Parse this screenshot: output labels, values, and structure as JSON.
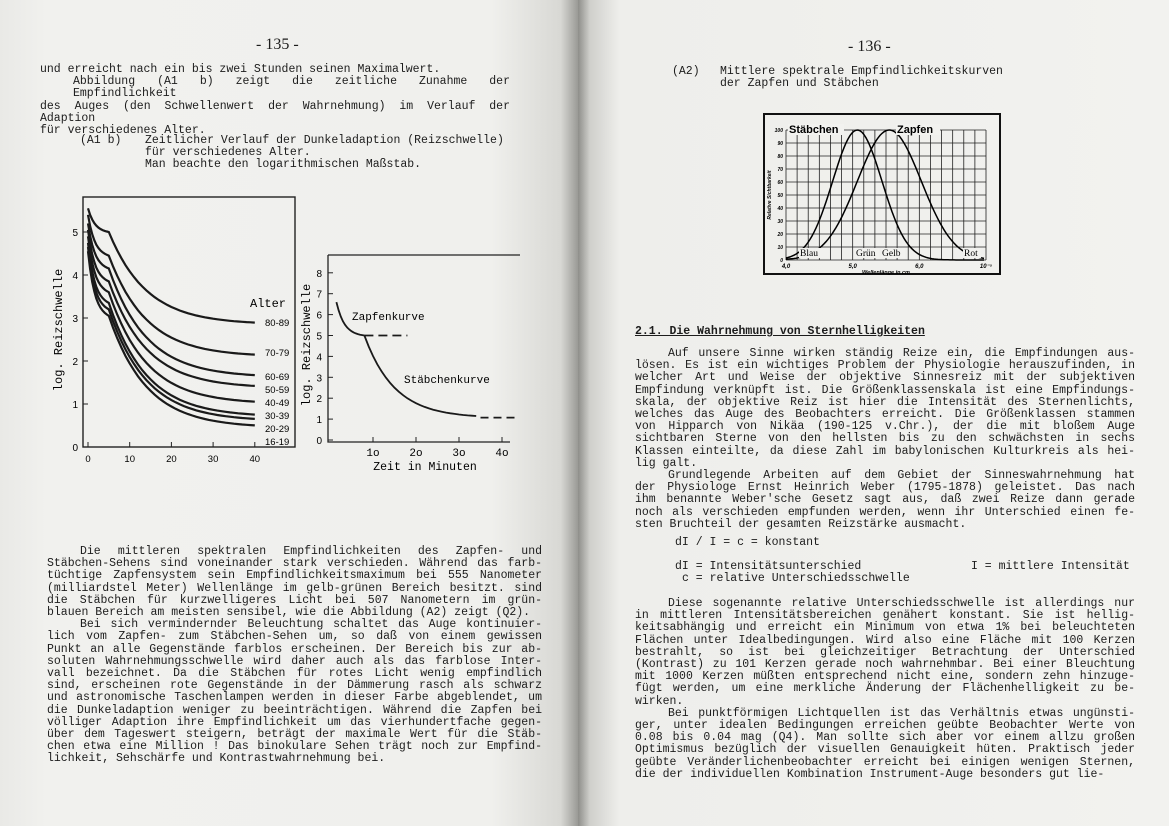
{
  "left_page": {
    "page_number": "- 135 -",
    "intro": [
      {
        "indent": false,
        "lines": [
          "und erreicht nach ein bis zwei Stunden seinen Maximalwert."
        ]
      },
      {
        "indent": true,
        "lines": [
          "Abbildung (A1 b) zeigt die zeitliche Zunahme der  Empfindlichkeit",
          "des  Auges (den Schwellenwert der Wahrnehmung) im Verlauf der Adaption",
          "für verschiedenes Alter."
        ]
      }
    ],
    "figure_caption": {
      "label": "(A1 b)",
      "lines": [
        "Zeitlicher Verlauf der Dunkeladaption (Reizschwelle)",
        "für verschiedenes Alter.",
        "Man beachte den logarithmischen Maßstab."
      ]
    },
    "figure_age": {
      "ylabel": "log. Reizschwelle",
      "y_ticks": [
        "0",
        "1",
        "2",
        "3",
        "4",
        "5"
      ],
      "x_ticks": [
        "0",
        "10",
        "20",
        "30",
        "40"
      ],
      "legend_title": "Alter",
      "series": [
        "80-89",
        "70-79",
        "60-69",
        "50-59",
        "40-49",
        "30-39",
        "20-29",
        "16-19"
      ]
    },
    "figure_curves": {
      "ylabel": "log. Reizschwelle",
      "xlabel": "Zeit in Minuten",
      "y_ticks": [
        "0",
        "1",
        "2",
        "3",
        "4",
        "5",
        "6",
        "7",
        "8"
      ],
      "x_ticks": [
        "1o",
        "2o",
        "3o",
        "4o"
      ],
      "cone_label": "Zapfenkurve",
      "rod_label": "Stäbchenkurve"
    },
    "body": [
      {
        "indent": true,
        "lines": [
          "Die mittleren spektralen Empfindlichkeiten des Zapfen-  und",
          "Stäbchen-Sehens sind voneinander stark verschieden.  Während das farb-",
          "tüchtige Zapfensystem sein Empfindlichkeitsmaximum bei  555  Nanometer",
          "(milliardstel Meter) Wellenlänge im gelb-grünen Bereich besitzt.  sind",
          "die Stäbchen für kurzwelligeres Licht  bei  507  Nanometern  im  grün-",
          "blauen Bereich am meisten sensibel, wie die Abbildung (A2) zeigt (Q2)."
        ]
      },
      {
        "indent": true,
        "lines": [
          "Bei  sich vermindernder Beleuchtung schaltet das Auge kontinuier-",
          "lich vom Zapfen- zum Stäbchen-Sehen um,  so  daß  von  einem  gewissen",
          "Punkt an alle Gegenstände farblos erscheinen.  Der Bereich bis zur ab-",
          "soluten Wahrnehmungsschwelle wird daher auch als das  farblose  Inter-",
          "vall  bezeichnet.  Da  die  Stäbchen für rotes Licht wenig empfindlich",
          "sind,  erscheinen rote Gegenstände in der Dämmerung rasch als  schwarz",
          "und astronomische Taschenlampen werden in dieser Farbe abgeblendet, um",
          "die Dunkeladaption weniger zu beeinträchtigen.  Während die Zapfen bei",
          "völliger Adaption ihre Empfindlichkeit um das vierhundertfache  gegen-",
          "über  dem Tageswert steigern,  beträgt der maximale Wert für die Stäb-",
          "chen etwa eine Million !  Das binokulare Sehen trägt noch zur Empfind-",
          "lichkeit, Sehschärfe und Kontrastwahrnehmung bei."
        ]
      }
    ]
  },
  "right_page": {
    "page_number": "- 136 -",
    "figure_caption": {
      "label": "(A2)",
      "lines": [
        "Mittlere spektrale Empfindlichkeitskurven",
        "der Zapfen und Stäbchen"
      ]
    },
    "figure_spectral": {
      "ylabel": "Relative Sichtbarkeit",
      "xlabel": "Wellenlänge in cm",
      "y_ticks": [
        "0",
        "10",
        "20",
        "30",
        "40",
        "50",
        "60",
        "70",
        "80",
        "90",
        "100"
      ],
      "x_ticks": [
        "4,0",
        "5,0",
        "6,0",
        "10⁻⁵"
      ],
      "rod_label": "Stäbchen",
      "cone_label": "Zapfen",
      "color_labels": [
        "Blau",
        "Grün",
        "Gelb",
        "Rot"
      ]
    },
    "section_heading": "2.1. Die Wahrnehmung von Sternhelligkeiten",
    "body1": [
      {
        "indent": true,
        "lines": [
          "Auf unsere Sinne wirken ständig Reize ein,  die Empfindungen aus-",
          "lösen. Es ist ein wichtiges Problem der Physiologie herauszufinden, in",
          "welcher Art und Weise der objektive  Sinnesreiz  mit  der  subjektiven",
          "Empfindung verknüpft ist. Die Größenklassenskala ist eine Empfindungs-",
          "skala,  der  objektive Reiz ist hier die Intensität des Sternenlichts,",
          "welches das Auge des Beobachters erreicht.  Die Größenklassen  stammen",
          "von  Hipparch  von  Nikäa  (190-125  v.Chr.),  der die mit bloßem Auge",
          "sichtbaren Sterne von den hellsten bis zu  den  schwächsten  in  sechs",
          "Klassen einteilte, da diese Zahl im babylonischen Kulturkreis als hei-",
          "lig galt."
        ]
      },
      {
        "indent": true,
        "lines": [
          "Grundlegende  Arbeiten  auf  dem Gebiet der Sinneswahrnehmung hat",
          "der Physiologe Ernst Heinrich Weber (1795-1878)  geleistet.  Das  nach",
          "ihm  benannte  Weber'sche Gesetz sagt aus,  daß zwei Reize dann gerade",
          "noch als verschieden empfunden werden,  wenn ihr Unterschied einen fe-",
          "sten Bruchteil der gesamten Reizstärke ausmacht."
        ]
      }
    ],
    "formula": "dI / I = c = konstant",
    "definitions": {
      "dI": "dI = Intensitätsunterschied",
      "I": "I = mittlere Intensität",
      "c": "c = relative Unterschiedsschwelle"
    },
    "body2": [
      {
        "indent": true,
        "lines": [
          "Diese sogenannte relative Unterschiedsschwelle ist allerdings nur",
          "in  mittleren Intensitätsbereichen genähert konstant.  Sie ist hellig-",
          "keitsabhängig und erreicht ein Minimum von etwa  1%  bei  beleuchteten",
          "Flächen  unter Idealbedingungen.  Wird also eine Fläche mit 100 Kerzen",
          "bestrahlt,  so  ist  bei  gleichzeitiger  Betrachtung  der  Unterschied",
          "(Kontrast) zu 101 Kerzen gerade noch wahrnehmbar. Bei einer Bleuchtung",
          "mit 1000 Kerzen müßten entsprechend nicht eine,  sondern zehn hinzuge-",
          "fügt werden,  um eine merkliche Änderung der Flächenhelligkeit zu  be-",
          "wirken."
        ]
      },
      {
        "indent": true,
        "lines": [
          "Bei punktförmigen Lichtquellen ist das Verhältnis etwas ungünsti-",
          "ger,  unter  idealen Bedingungen erreichen geübte Beobachter Werte von",
          "0.08 bis 0.04 mag (Q4).  Man sollte sich aber vor einem  allzu  großen",
          "Optimismus bezüglich der visuellen Genauigkeit hüten.  Praktisch jeder",
          "geübte Veränderlichenbeobachter erreicht bei einigen wenigen  Sternen,",
          "die  der  individuellen Kombination Instrument-Auge besonders gut lie-"
        ]
      }
    ]
  }
}
